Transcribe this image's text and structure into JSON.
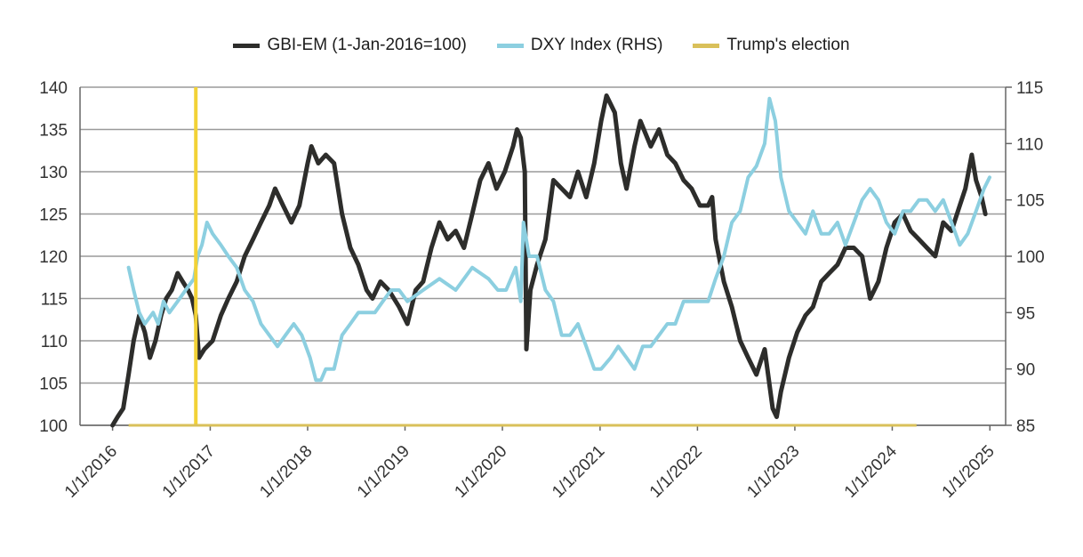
{
  "chart_data": {
    "type": "line",
    "colors": {
      "gbi": "#2d2d2b",
      "dxy": "#8ccfe0",
      "election": "#f2d236",
      "grid": "#9a9a9a",
      "axis": "#666666"
    },
    "legend": [
      {
        "name": "GBI-EM (1-Jan-2016=100)",
        "color": "#2d2d2b"
      },
      {
        "name": "DXY Index (RHS)",
        "color": "#8ccfe0"
      },
      {
        "name": "Trump's election",
        "color": "#d9c05a"
      }
    ],
    "x_tick_labels": [
      "1/1/2016",
      "1/1/2017",
      "1/1/2018",
      "1/1/2019",
      "1/1/2020",
      "1/1/2021",
      "1/1/2022",
      "1/1/2023",
      "1/1/2024",
      "1/1/2025"
    ],
    "x_range": [
      "2015-09-01",
      "2025-03-01"
    ],
    "y_left": {
      "range": [
        100,
        140
      ],
      "ticks": [
        100,
        105,
        110,
        115,
        120,
        125,
        130,
        135,
        140
      ]
    },
    "y_right": {
      "range": [
        85,
        115
      ],
      "ticks": [
        85,
        90,
        95,
        100,
        105,
        110,
        115
      ]
    },
    "grid": true,
    "legend_position": "top",
    "series": [
      {
        "name": "GBI-EM (1-Jan-2016=100)",
        "axis": "left",
        "points": [
          [
            "2016-01-01",
            100
          ],
          [
            "2016-01-20",
            101
          ],
          [
            "2016-02-10",
            102
          ],
          [
            "2016-03-01",
            106
          ],
          [
            "2016-03-20",
            110
          ],
          [
            "2016-04-10",
            113
          ],
          [
            "2016-05-01",
            111
          ],
          [
            "2016-05-20",
            108
          ],
          [
            "2016-06-10",
            110
          ],
          [
            "2016-07-01",
            113
          ],
          [
            "2016-07-20",
            115
          ],
          [
            "2016-08-10",
            116
          ],
          [
            "2016-09-01",
            118
          ],
          [
            "2016-09-20",
            117
          ],
          [
            "2016-10-10",
            116
          ],
          [
            "2016-10-25",
            115
          ],
          [
            "2016-11-08",
            113
          ],
          [
            "2016-11-20",
            108
          ],
          [
            "2016-12-10",
            109
          ],
          [
            "2017-01-10",
            110
          ],
          [
            "2017-02-10",
            113
          ],
          [
            "2017-03-10",
            115
          ],
          [
            "2017-04-10",
            117
          ],
          [
            "2017-05-10",
            120
          ],
          [
            "2017-06-10",
            122
          ],
          [
            "2017-07-10",
            124
          ],
          [
            "2017-08-10",
            126
          ],
          [
            "2017-09-01",
            128
          ],
          [
            "2017-10-01",
            126
          ],
          [
            "2017-11-01",
            124
          ],
          [
            "2017-12-01",
            126
          ],
          [
            "2018-01-01",
            131
          ],
          [
            "2018-01-15",
            133
          ],
          [
            "2018-02-10",
            131
          ],
          [
            "2018-03-10",
            132
          ],
          [
            "2018-04-10",
            131
          ],
          [
            "2018-05-10",
            125
          ],
          [
            "2018-06-10",
            121
          ],
          [
            "2018-07-10",
            119
          ],
          [
            "2018-08-10",
            116
          ],
          [
            "2018-09-01",
            115
          ],
          [
            "2018-10-01",
            117
          ],
          [
            "2018-11-01",
            116
          ],
          [
            "2018-12-10",
            114
          ],
          [
            "2019-01-10",
            112
          ],
          [
            "2019-02-10",
            116
          ],
          [
            "2019-03-10",
            117
          ],
          [
            "2019-04-10",
            121
          ],
          [
            "2019-05-10",
            124
          ],
          [
            "2019-06-10",
            122
          ],
          [
            "2019-07-10",
            123
          ],
          [
            "2019-08-10",
            121
          ],
          [
            "2019-09-10",
            125
          ],
          [
            "2019-10-10",
            129
          ],
          [
            "2019-11-10",
            131
          ],
          [
            "2019-12-10",
            128
          ],
          [
            "2020-01-10",
            130
          ],
          [
            "2020-02-10",
            133
          ],
          [
            "2020-02-25",
            135
          ],
          [
            "2020-03-10",
            134
          ],
          [
            "2020-03-25",
            130
          ],
          [
            "2020-03-31",
            109
          ],
          [
            "2020-04-15",
            116
          ],
          [
            "2020-05-10",
            119
          ],
          [
            "2020-06-10",
            122
          ],
          [
            "2020-07-10",
            129
          ],
          [
            "2020-08-10",
            128
          ],
          [
            "2020-09-10",
            127
          ],
          [
            "2020-10-10",
            130
          ],
          [
            "2020-11-10",
            127
          ],
          [
            "2020-12-10",
            131
          ],
          [
            "2021-01-05",
            136
          ],
          [
            "2021-01-25",
            139
          ],
          [
            "2021-02-25",
            137
          ],
          [
            "2021-03-20",
            131
          ],
          [
            "2021-04-10",
            128
          ],
          [
            "2021-05-10",
            133
          ],
          [
            "2021-06-01",
            136
          ],
          [
            "2021-07-10",
            133
          ],
          [
            "2021-08-10",
            135
          ],
          [
            "2021-09-10",
            132
          ],
          [
            "2021-10-10",
            131
          ],
          [
            "2021-11-10",
            129
          ],
          [
            "2021-12-10",
            128
          ],
          [
            "2022-01-10",
            126
          ],
          [
            "2022-02-10",
            126
          ],
          [
            "2022-02-25",
            127
          ],
          [
            "2022-03-10",
            122
          ],
          [
            "2022-04-10",
            117
          ],
          [
            "2022-05-10",
            114
          ],
          [
            "2022-06-10",
            110
          ],
          [
            "2022-07-10",
            108
          ],
          [
            "2022-08-10",
            106
          ],
          [
            "2022-09-10",
            109
          ],
          [
            "2022-10-10",
            102
          ],
          [
            "2022-10-25",
            101
          ],
          [
            "2022-11-10",
            104
          ],
          [
            "2022-12-10",
            108
          ],
          [
            "2023-01-10",
            111
          ],
          [
            "2023-02-10",
            113
          ],
          [
            "2023-03-10",
            114
          ],
          [
            "2023-04-10",
            117
          ],
          [
            "2023-05-10",
            118
          ],
          [
            "2023-06-10",
            119
          ],
          [
            "2023-07-10",
            121
          ],
          [
            "2023-08-10",
            121
          ],
          [
            "2023-09-10",
            120
          ],
          [
            "2023-10-10",
            115
          ],
          [
            "2023-11-10",
            117
          ],
          [
            "2023-12-10",
            121
          ],
          [
            "2024-01-10",
            124
          ],
          [
            "2024-02-10",
            125
          ],
          [
            "2024-03-10",
            123
          ],
          [
            "2024-04-10",
            122
          ],
          [
            "2024-05-10",
            121
          ],
          [
            "2024-06-10",
            120
          ],
          [
            "2024-07-10",
            124
          ],
          [
            "2024-08-10",
            123
          ],
          [
            "2024-09-10",
            126
          ],
          [
            "2024-10-01",
            128
          ],
          [
            "2024-10-25",
            132
          ],
          [
            "2024-11-10",
            129
          ],
          [
            "2024-12-01",
            127
          ],
          [
            "2024-12-15",
            125
          ]
        ]
      },
      {
        "name": "DXY Index (RHS)",
        "axis": "right",
        "points": [
          [
            "2016-03-01",
            99
          ],
          [
            "2016-03-20",
            97
          ],
          [
            "2016-04-10",
            95
          ],
          [
            "2016-05-01",
            94
          ],
          [
            "2016-06-01",
            95
          ],
          [
            "2016-06-20",
            94
          ],
          [
            "2016-07-10",
            96
          ],
          [
            "2016-08-01",
            95
          ],
          [
            "2016-09-01",
            96
          ],
          [
            "2016-10-01",
            97
          ],
          [
            "2016-11-01",
            98
          ],
          [
            "2016-11-15",
            100
          ],
          [
            "2016-12-01",
            101
          ],
          [
            "2016-12-20",
            103
          ],
          [
            "2017-01-10",
            102
          ],
          [
            "2017-02-10",
            101
          ],
          [
            "2017-03-10",
            100
          ],
          [
            "2017-04-10",
            99
          ],
          [
            "2017-05-10",
            97
          ],
          [
            "2017-06-10",
            96
          ],
          [
            "2017-07-10",
            94
          ],
          [
            "2017-08-10",
            93
          ],
          [
            "2017-09-10",
            92
          ],
          [
            "2017-10-10",
            93
          ],
          [
            "2017-11-10",
            94
          ],
          [
            "2017-12-10",
            93
          ],
          [
            "2018-01-10",
            91
          ],
          [
            "2018-02-01",
            89
          ],
          [
            "2018-02-20",
            89
          ],
          [
            "2018-03-10",
            90
          ],
          [
            "2018-04-10",
            90
          ],
          [
            "2018-05-10",
            93
          ],
          [
            "2018-06-10",
            94
          ],
          [
            "2018-07-10",
            95
          ],
          [
            "2018-08-10",
            95
          ],
          [
            "2018-09-10",
            95
          ],
          [
            "2018-10-10",
            96
          ],
          [
            "2018-11-10",
            97
          ],
          [
            "2018-12-10",
            97
          ],
          [
            "2019-01-10",
            96
          ],
          [
            "2019-03-10",
            97
          ],
          [
            "2019-05-10",
            98
          ],
          [
            "2019-07-10",
            97
          ],
          [
            "2019-09-10",
            99
          ],
          [
            "2019-11-10",
            98
          ],
          [
            "2019-12-15",
            97
          ],
          [
            "2020-01-15",
            97
          ],
          [
            "2020-02-20",
            99
          ],
          [
            "2020-03-10",
            96
          ],
          [
            "2020-03-20",
            103
          ],
          [
            "2020-04-10",
            100
          ],
          [
            "2020-05-10",
            100
          ],
          [
            "2020-06-10",
            97
          ],
          [
            "2020-07-10",
            96
          ],
          [
            "2020-08-10",
            93
          ],
          [
            "2020-09-10",
            93
          ],
          [
            "2020-10-10",
            94
          ],
          [
            "2020-11-10",
            92
          ],
          [
            "2020-12-10",
            90
          ],
          [
            "2021-01-05",
            90
          ],
          [
            "2021-02-10",
            91
          ],
          [
            "2021-03-10",
            92
          ],
          [
            "2021-04-10",
            91
          ],
          [
            "2021-05-10",
            90
          ],
          [
            "2021-06-10",
            92
          ],
          [
            "2021-07-10",
            92
          ],
          [
            "2021-08-10",
            93
          ],
          [
            "2021-09-10",
            94
          ],
          [
            "2021-10-10",
            94
          ],
          [
            "2021-11-10",
            96
          ],
          [
            "2021-12-10",
            96
          ],
          [
            "2022-01-10",
            96
          ],
          [
            "2022-02-10",
            96
          ],
          [
            "2022-03-10",
            98
          ],
          [
            "2022-04-10",
            100
          ],
          [
            "2022-05-10",
            103
          ],
          [
            "2022-06-10",
            104
          ],
          [
            "2022-07-10",
            107
          ],
          [
            "2022-08-10",
            108
          ],
          [
            "2022-09-10",
            110
          ],
          [
            "2022-09-28",
            114
          ],
          [
            "2022-10-20",
            112
          ],
          [
            "2022-11-10",
            107
          ],
          [
            "2022-12-10",
            104
          ],
          [
            "2023-01-10",
            103
          ],
          [
            "2023-02-10",
            102
          ],
          [
            "2023-03-10",
            104
          ],
          [
            "2023-04-10",
            102
          ],
          [
            "2023-05-10",
            102
          ],
          [
            "2023-06-10",
            103
          ],
          [
            "2023-07-10",
            101
          ],
          [
            "2023-08-10",
            103
          ],
          [
            "2023-09-10",
            105
          ],
          [
            "2023-10-10",
            106
          ],
          [
            "2023-11-10",
            105
          ],
          [
            "2023-12-10",
            103
          ],
          [
            "2024-01-10",
            102
          ],
          [
            "2024-02-10",
            104
          ],
          [
            "2024-03-10",
            104
          ],
          [
            "2024-04-10",
            105
          ],
          [
            "2024-05-10",
            105
          ],
          [
            "2024-06-10",
            104
          ],
          [
            "2024-07-10",
            105
          ],
          [
            "2024-08-10",
            103
          ],
          [
            "2024-09-10",
            101
          ],
          [
            "2024-10-10",
            102
          ],
          [
            "2024-11-10",
            104
          ],
          [
            "2024-12-10",
            106
          ],
          [
            "2024-12-31",
            107
          ]
        ]
      },
      {
        "name": "Trump's election",
        "type": "marker",
        "points": [
          [
            "2016-11-08",
            140
          ],
          [
            "2016-11-08",
            100
          ]
        ]
      }
    ]
  }
}
